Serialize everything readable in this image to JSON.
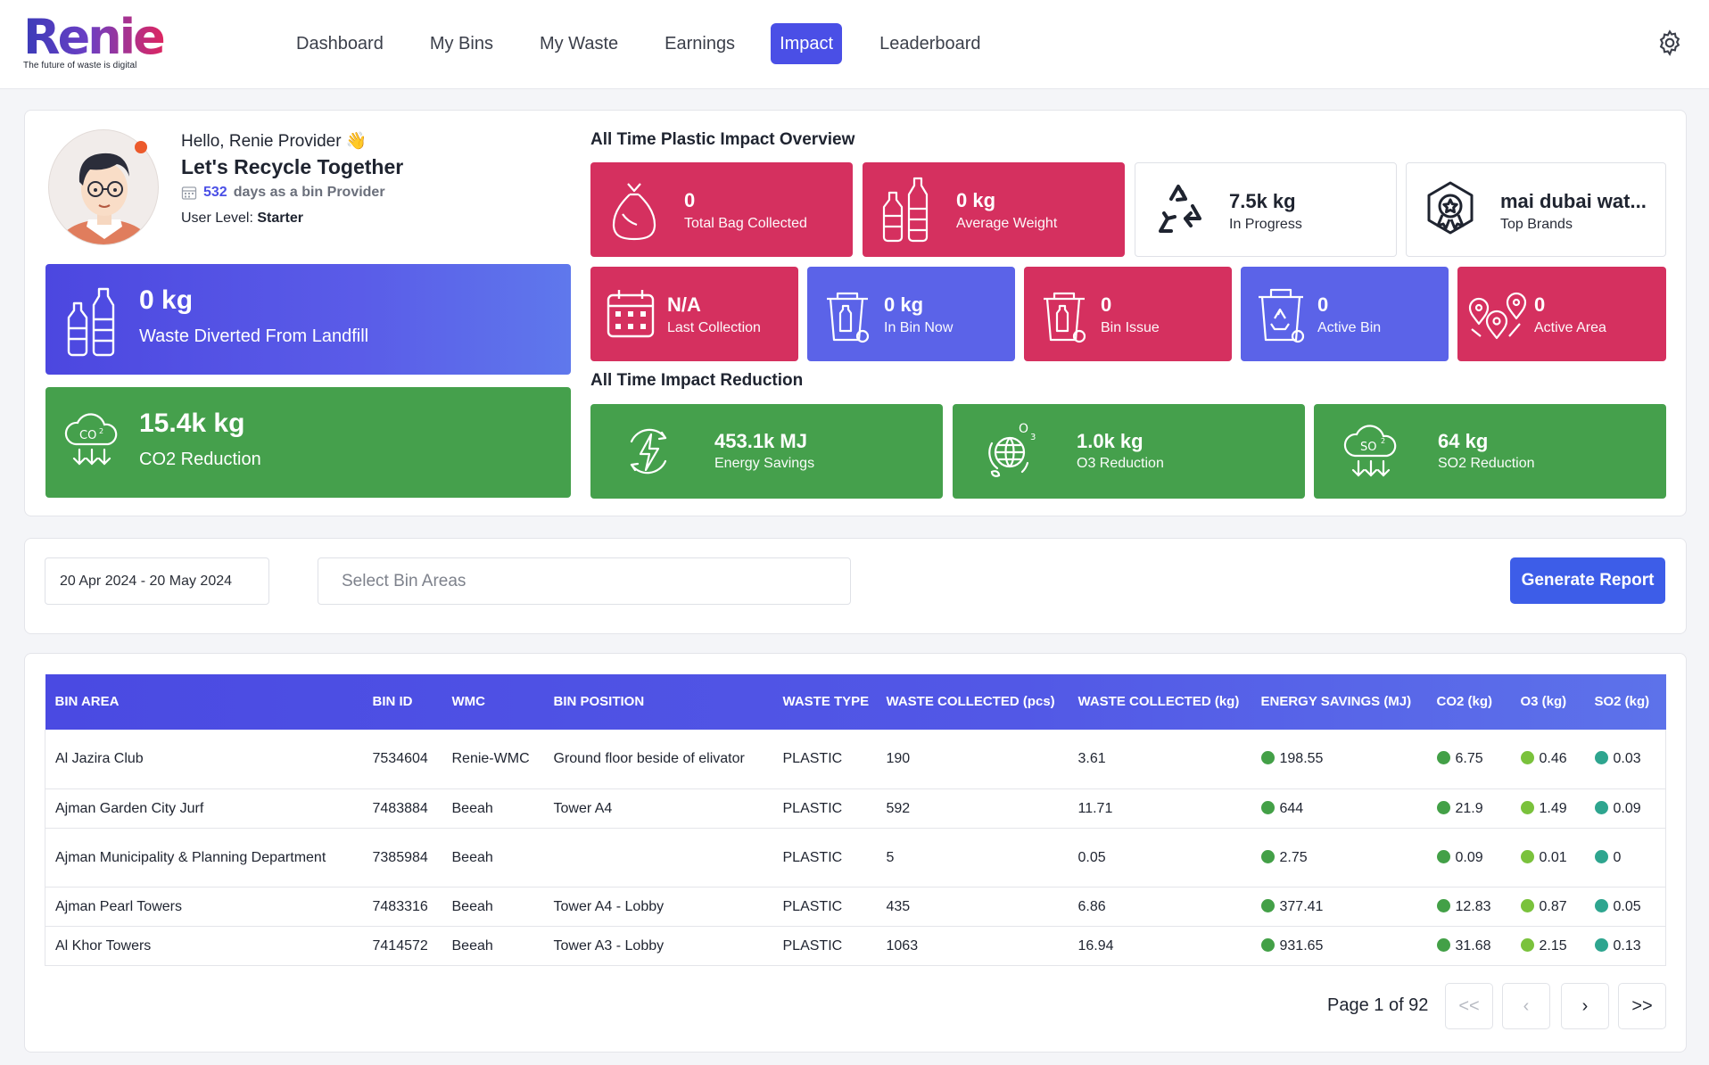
{
  "brand": {
    "name": "Renie",
    "tagline": "The future of waste is digital"
  },
  "nav": {
    "items": [
      {
        "label": "Dashboard"
      },
      {
        "label": "My Bins"
      },
      {
        "label": "My Waste"
      },
      {
        "label": "Earnings"
      },
      {
        "label": "Impact"
      },
      {
        "label": "Leaderboard"
      }
    ],
    "active": "Impact",
    "settings_icon": "gear-icon"
  },
  "profile": {
    "greeting": "Hello, Renie Provider",
    "wave": "👋",
    "tagline": "Let's Recycle Together",
    "days_count": "532",
    "days_text": "days as a bin Provider",
    "level_label": "User Level:",
    "level_value": "Starter"
  },
  "summary": {
    "waste_diverted": {
      "value": "0 kg",
      "label": "Waste Diverted From Landfill"
    },
    "co2_reduction": {
      "value": "15.4k kg",
      "label": "CO2 Reduction"
    }
  },
  "plastic_overview": {
    "title": "All Time Plastic Impact Overview",
    "total_bag": {
      "value": "0",
      "label": "Total Bag Collected"
    },
    "avg_weight": {
      "value": "0 kg",
      "label": "Average Weight"
    },
    "in_progress": {
      "value": "7.5k kg",
      "label": "In Progress"
    },
    "top_brands": {
      "value": "mai dubai wat...",
      "label": "Top Brands"
    },
    "last_collection": {
      "value": "N/A",
      "label": "Last Collection"
    },
    "in_bin_now": {
      "value": "0 kg",
      "label": "In Bin Now"
    },
    "bin_issue": {
      "value": "0",
      "label": "Bin Issue"
    },
    "active_bin": {
      "value": "0",
      "label": "Active Bin"
    },
    "active_area": {
      "value": "0",
      "label": "Active Area"
    }
  },
  "impact_reduction": {
    "title": "All Time Impact Reduction",
    "energy": {
      "value": "453.1k MJ",
      "label": "Energy Savings"
    },
    "o3": {
      "value": "1.0k kg",
      "label": "O3 Reduction"
    },
    "so2": {
      "value": "64 kg",
      "label": "SO2 Reduction"
    }
  },
  "filters": {
    "date_range": "20 Apr 2024 - 20 May 2024",
    "bin_area_placeholder": "Select Bin Areas",
    "generate_label": "Generate Report"
  },
  "table": {
    "headers": [
      "BIN AREA",
      "BIN ID",
      "WMC",
      "BIN POSITION",
      "WASTE TYPE",
      "WASTE COLLECTED (pcs)",
      "WASTE COLLECTED (kg)",
      "ENERGY SAVINGS (MJ)",
      "CO2 (kg)",
      "O3 (kg)",
      "SO2 (kg)"
    ],
    "rows": [
      {
        "area": "Al Jazira Club",
        "id": "7534604",
        "wmc": "Renie-WMC",
        "position": "Ground floor beside of elivator",
        "type": "PLASTIC",
        "pcs": "190",
        "kg": "3.61",
        "energy": "198.55",
        "co2": "6.75",
        "o3": "0.46",
        "so2": "0.03"
      },
      {
        "area": "Ajman Garden City Jurf",
        "id": "7483884",
        "wmc": "Beeah",
        "position": "Tower A4",
        "type": "PLASTIC",
        "pcs": "592",
        "kg": "11.71",
        "energy": "644",
        "co2": "21.9",
        "o3": "1.49",
        "so2": "0.09"
      },
      {
        "area": "Ajman Municipality & Planning Department",
        "id": "7385984",
        "wmc": "Beeah",
        "position": "",
        "type": "PLASTIC",
        "pcs": "5",
        "kg": "0.05",
        "energy": "2.75",
        "co2": "0.09",
        "o3": "0.01",
        "so2": "0"
      },
      {
        "area": "Ajman Pearl Towers",
        "id": "7483316",
        "wmc": "Beeah",
        "position": "Tower A4 - Lobby",
        "type": "PLASTIC",
        "pcs": "435",
        "kg": "6.86",
        "energy": "377.41",
        "co2": "12.83",
        "o3": "0.87",
        "so2": "0.05"
      },
      {
        "area": "Al Khor Towers",
        "id": "7414572",
        "wmc": "Beeah",
        "position": "Tower A3 - Lobby",
        "type": "PLASTIC",
        "pcs": "1063",
        "kg": "16.94",
        "energy": "931.65",
        "co2": "31.68",
        "o3": "2.15",
        "so2": "0.13"
      }
    ]
  },
  "pagination": {
    "label": "Page 1 of 92",
    "first": "<<",
    "prev": "‹",
    "next": "›",
    "last": ">>"
  },
  "colors": {
    "primary": "#4a4fe6",
    "pink": "#d5305f",
    "green": "#45a04c",
    "button": "#3d5de8"
  }
}
